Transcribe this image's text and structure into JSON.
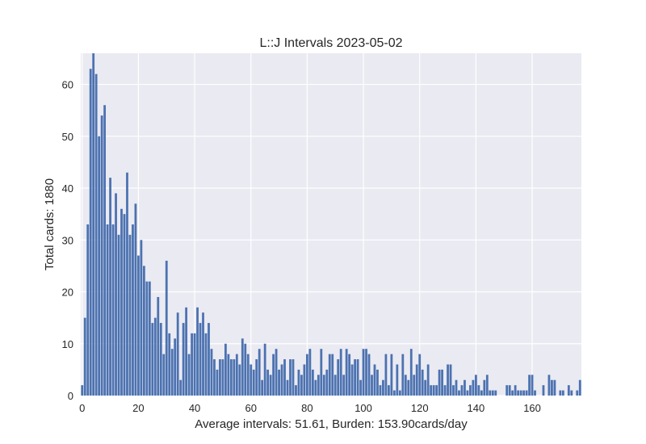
{
  "chart_data": {
    "type": "bar",
    "title": "L::J Intervals 2023-05-02",
    "xlabel": "Average intervals: 51.61, Burden: 153.90cards/day",
    "ylabel": "Total cards: 1880",
    "xlim": [
      -0.5,
      177.5
    ],
    "ylim": [
      0,
      66
    ],
    "xticks": [
      0,
      20,
      40,
      60,
      80,
      100,
      120,
      140,
      160
    ],
    "yticks": [
      0,
      10,
      20,
      30,
      40,
      50,
      60
    ],
    "grid": true,
    "bar_color": "#4c72b0",
    "background_color": "#eaeaf2",
    "grid_color": "#ffffff",
    "x": [
      0,
      1,
      2,
      3,
      4,
      5,
      6,
      7,
      8,
      9,
      10,
      11,
      12,
      13,
      14,
      15,
      16,
      17,
      18,
      19,
      20,
      21,
      22,
      23,
      24,
      25,
      26,
      27,
      28,
      29,
      30,
      31,
      32,
      33,
      34,
      35,
      36,
      37,
      38,
      39,
      40,
      41,
      42,
      43,
      44,
      45,
      46,
      47,
      48,
      49,
      50,
      51,
      52,
      53,
      54,
      55,
      56,
      57,
      58,
      59,
      60,
      61,
      62,
      63,
      64,
      65,
      66,
      67,
      68,
      69,
      70,
      71,
      72,
      73,
      74,
      75,
      76,
      77,
      78,
      79,
      80,
      81,
      82,
      83,
      84,
      85,
      86,
      87,
      88,
      89,
      90,
      91,
      92,
      93,
      94,
      95,
      96,
      97,
      98,
      99,
      100,
      101,
      102,
      103,
      104,
      105,
      106,
      107,
      108,
      109,
      110,
      111,
      112,
      113,
      114,
      115,
      116,
      117,
      118,
      119,
      120,
      121,
      122,
      123,
      124,
      125,
      126,
      127,
      128,
      129,
      130,
      131,
      132,
      133,
      134,
      135,
      136,
      137,
      138,
      139,
      140,
      141,
      142,
      143,
      144,
      145,
      146,
      147,
      148,
      149,
      150,
      151,
      152,
      153,
      154,
      155,
      156,
      157,
      158,
      159,
      160,
      161,
      162,
      163,
      164,
      165,
      166,
      167,
      168,
      169,
      170,
      171,
      172,
      173,
      174,
      175,
      176,
      177
    ],
    "values": [
      2,
      15,
      33,
      63,
      66,
      62,
      50,
      54,
      56,
      33,
      42,
      33,
      39,
      31,
      36,
      35,
      43,
      31,
      33,
      37,
      27,
      30,
      25,
      22,
      22,
      14,
      15,
      19,
      14,
      8,
      26,
      12,
      9,
      11,
      16,
      3,
      14,
      17,
      8,
      12,
      12,
      17,
      14,
      16,
      12,
      14,
      9,
      7,
      5,
      7,
      7,
      10,
      8,
      7,
      7,
      8,
      6,
      11,
      10,
      8,
      6,
      5,
      7,
      9,
      3,
      10,
      5,
      4,
      8,
      9,
      5,
      6,
      7,
      3,
      7,
      7,
      2,
      5,
      4,
      6,
      8,
      9,
      5,
      3,
      4,
      9,
      4,
      5,
      8,
      8,
      4,
      7,
      9,
      4,
      9,
      8,
      6,
      7,
      7,
      3,
      9,
      9,
      8,
      4,
      6,
      5,
      2,
      3,
      8,
      2,
      8,
      1,
      6,
      1,
      8,
      4,
      3,
      9,
      4,
      6,
      8,
      5,
      3,
      6,
      2,
      2,
      2,
      5,
      5,
      2,
      6,
      6,
      2,
      3,
      1,
      2,
      3,
      1,
      2,
      3,
      4,
      2,
      1,
      3,
      4,
      1,
      1,
      1,
      0,
      0,
      0,
      2,
      2,
      1,
      2,
      1,
      1,
      1,
      1,
      4,
      4,
      1,
      0,
      0,
      2,
      0,
      4,
      3,
      3,
      0,
      1,
      1,
      0,
      2,
      1,
      0,
      1,
      3
    ]
  }
}
